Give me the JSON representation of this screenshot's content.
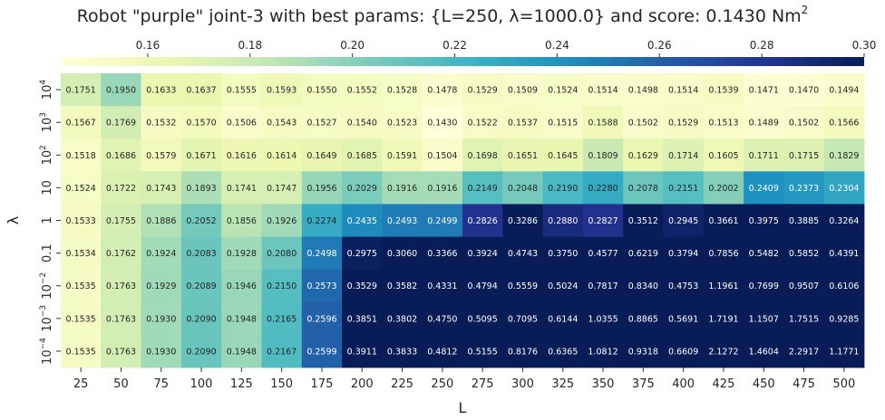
{
  "chart_data": {
    "type": "heatmap",
    "title": "Robot \"purple\" joint-3 with best params: {L=250, λ=1000.0} and score: 0.1430 Nm²",
    "title_main": "Robot \"purple\" joint-3 with best params: {L=250, λ=1000.0} and score: 0.1430 Nm",
    "title_sup": "2",
    "xlabel": "L",
    "ylabel": "λ",
    "x": [
      "25",
      "50",
      "75",
      "100",
      "125",
      "150",
      "175",
      "200",
      "225",
      "250",
      "275",
      "300",
      "325",
      "350",
      "375",
      "400",
      "425",
      "450",
      "475",
      "500"
    ],
    "y": [
      {
        "base": "10",
        "exp": "4"
      },
      {
        "base": "10",
        "exp": "3"
      },
      {
        "base": "10",
        "exp": "2"
      },
      {
        "base": "10",
        "exp": ""
      },
      {
        "base": "1",
        "exp": ""
      },
      {
        "base": "0.1",
        "exp": ""
      },
      {
        "base": "10",
        "exp": "−2"
      },
      {
        "base": "10",
        "exp": "−3"
      },
      {
        "base": "10",
        "exp": "−4"
      }
    ],
    "values": [
      [
        "0.1751",
        "0.1950",
        "0.1633",
        "0.1637",
        "0.1555",
        "0.1593",
        "0.1550",
        "0.1552",
        "0.1528",
        "0.1478",
        "0.1529",
        "0.1509",
        "0.1524",
        "0.1514",
        "0.1498",
        "0.1514",
        "0.1539",
        "0.1471",
        "0.1470",
        "0.1494"
      ],
      [
        "0.1567",
        "0.1769",
        "0.1532",
        "0.1570",
        "0.1506",
        "0.1543",
        "0.1527",
        "0.1540",
        "0.1523",
        "0.1430",
        "0.1522",
        "0.1537",
        "0.1515",
        "0.1588",
        "0.1502",
        "0.1529",
        "0.1513",
        "0.1489",
        "0.1502",
        "0.1566"
      ],
      [
        "0.1518",
        "0.1686",
        "0.1579",
        "0.1671",
        "0.1616",
        "0.1614",
        "0.1649",
        "0.1685",
        "0.1591",
        "0.1504",
        "0.1698",
        "0.1651",
        "0.1645",
        "0.1809",
        "0.1629",
        "0.1714",
        "0.1605",
        "0.1711",
        "0.1715",
        "0.1829"
      ],
      [
        "0.1524",
        "0.1722",
        "0.1743",
        "0.1893",
        "0.1741",
        "0.1747",
        "0.1956",
        "0.2029",
        "0.1916",
        "0.1916",
        "0.2149",
        "0.2048",
        "0.2190",
        "0.2280",
        "0.2078",
        "0.2151",
        "0.2002",
        "0.2409",
        "0.2373",
        "0.2304"
      ],
      [
        "0.1533",
        "0.1755",
        "0.1886",
        "0.2052",
        "0.1856",
        "0.1926",
        "0.2274",
        "0.2435",
        "0.2493",
        "0.2499",
        "0.2826",
        "0.3286",
        "0.2880",
        "0.2827",
        "0.3512",
        "0.2945",
        "0.3661",
        "0.3975",
        "0.3885",
        "0.3264"
      ],
      [
        "0.1534",
        "0.1762",
        "0.1924",
        "0.2083",
        "0.1928",
        "0.2080",
        "0.2498",
        "0.2975",
        "0.3060",
        "0.3366",
        "0.3924",
        "0.4743",
        "0.3750",
        "0.4577",
        "0.6219",
        "0.3794",
        "0.7856",
        "0.5482",
        "0.5852",
        "0.4391"
      ],
      [
        "0.1535",
        "0.1763",
        "0.1929",
        "0.2089",
        "0.1946",
        "0.2150",
        "0.2573",
        "0.3529",
        "0.3582",
        "0.4331",
        "0.4794",
        "0.5559",
        "0.5024",
        "0.7817",
        "0.8340",
        "0.4753",
        "1.1961",
        "0.7699",
        "0.9507",
        "0.6106"
      ],
      [
        "0.1535",
        "0.1763",
        "0.1930",
        "0.2090",
        "0.1948",
        "0.2165",
        "0.2596",
        "0.3851",
        "0.3802",
        "0.4750",
        "0.5095",
        "0.7095",
        "0.6144",
        "1.0355",
        "0.8865",
        "0.5691",
        "1.7191",
        "1.1507",
        "1.7515",
        "0.9285"
      ],
      [
        "0.1535",
        "0.1763",
        "0.1930",
        "0.2090",
        "0.1948",
        "0.2167",
        "0.2599",
        "0.3911",
        "0.3833",
        "0.4812",
        "0.5155",
        "0.8176",
        "0.6365",
        "1.0812",
        "0.9318",
        "0.6609",
        "2.1272",
        "1.4604",
        "2.2917",
        "1.1771"
      ]
    ],
    "colorbar": {
      "colormap": "YlGnBu",
      "vmin": 0.143,
      "vmax": 0.3,
      "position": "top",
      "ticks": [
        "0.16",
        "0.18",
        "0.20",
        "0.22",
        "0.24",
        "0.26",
        "0.28",
        "0.30"
      ]
    }
  }
}
